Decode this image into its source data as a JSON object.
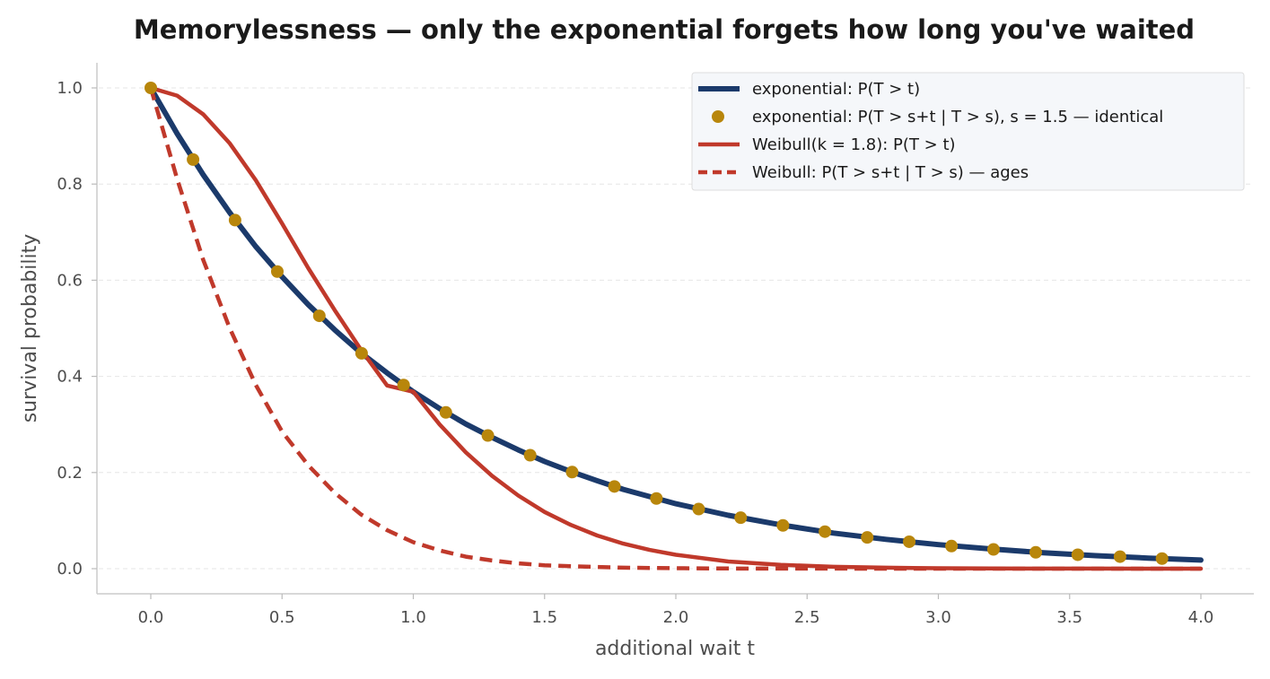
{
  "chart_data": {
    "type": "line",
    "title": "Memorylessness — only the exponential forgets how long you've waited",
    "xlabel": "additional wait t",
    "ylabel": "survival probability",
    "xlim": [
      -0.2,
      4.2
    ],
    "ylim": [
      -0.05,
      1.05
    ],
    "x_ticks": [
      0.0,
      0.5,
      1.0,
      1.5,
      2.0,
      2.5,
      3.0,
      3.5,
      4.0
    ],
    "x_tick_labels": [
      "0.0",
      "0.5",
      "1.0",
      "1.5",
      "2.0",
      "2.5",
      "3.0",
      "3.5",
      "4.0"
    ],
    "y_ticks": [
      0.0,
      0.2,
      0.4,
      0.6,
      0.8,
      1.0
    ],
    "y_tick_labels": [
      "0.0",
      "0.2",
      "0.4",
      "0.6",
      "0.8",
      "1.0"
    ],
    "grid": "horizontal dashed",
    "legend_position": "top-right",
    "series": [
      {
        "name": "exponential: P(T > t)",
        "style": "solid",
        "color": "#1b3a6b",
        "x": [
          0.0,
          0.1,
          0.2,
          0.3,
          0.4,
          0.5,
          0.6,
          0.7,
          0.8,
          0.9,
          1.0,
          1.1,
          1.2,
          1.3,
          1.4,
          1.5,
          1.6,
          1.7,
          1.8,
          1.9,
          2.0,
          2.2,
          2.4,
          2.6,
          2.8,
          3.0,
          3.2,
          3.4,
          3.6,
          3.8,
          4.0
        ],
        "y": [
          1.0,
          0.905,
          0.819,
          0.741,
          0.67,
          0.607,
          0.549,
          0.497,
          0.449,
          0.407,
          0.368,
          0.333,
          0.301,
          0.273,
          0.247,
          0.223,
          0.202,
          0.183,
          0.165,
          0.15,
          0.135,
          0.111,
          0.091,
          0.074,
          0.061,
          0.05,
          0.041,
          0.033,
          0.027,
          0.022,
          0.018
        ]
      },
      {
        "name": "exponential: P(T > s+t | T > s), s = 1.5 — identical",
        "style": "markers",
        "color": "#b8860b",
        "x": [
          0.0,
          0.161,
          0.321,
          0.482,
          0.642,
          0.803,
          0.963,
          1.124,
          1.284,
          1.445,
          1.605,
          1.766,
          1.926,
          2.087,
          2.247,
          2.408,
          2.568,
          2.729,
          2.889,
          3.05,
          3.21,
          3.371,
          3.531,
          3.692,
          3.852
        ],
        "y": [
          1.0,
          0.851,
          0.725,
          0.618,
          0.526,
          0.448,
          0.382,
          0.325,
          0.277,
          0.236,
          0.201,
          0.171,
          0.146,
          0.124,
          0.106,
          0.09,
          0.077,
          0.065,
          0.056,
          0.047,
          0.04,
          0.034,
          0.029,
          0.025,
          0.021
        ]
      },
      {
        "name": "Weibull(k = 1.8): P(T > t)",
        "style": "solid",
        "color": "#c0392b",
        "x": [
          0.0,
          0.1,
          0.2,
          0.3,
          0.4,
          0.5,
          0.6,
          0.7,
          0.8,
          0.9,
          1.0,
          1.1,
          1.2,
          1.3,
          1.4,
          1.5,
          1.6,
          1.7,
          1.8,
          1.9,
          2.0,
          2.2,
          2.4,
          2.6,
          2.8,
          3.0,
          3.2,
          3.4,
          3.6,
          3.8,
          4.0
        ],
        "y": [
          1.0,
          0.984,
          0.945,
          0.885,
          0.808,
          0.718,
          0.625,
          0.538,
          0.456,
          0.381,
          0.368,
          0.3,
          0.242,
          0.193,
          0.152,
          0.118,
          0.091,
          0.069,
          0.052,
          0.039,
          0.029,
          0.015,
          0.008,
          0.004,
          0.002,
          0.001,
          0.0005,
          0.0002,
          0.0001,
          0.0,
          0.0
        ]
      },
      {
        "name": "Weibull: P(T > s+t | T > s) — ages",
        "style": "dashed",
        "color": "#c0392b",
        "x": [
          0.0,
          0.1,
          0.2,
          0.3,
          0.4,
          0.5,
          0.6,
          0.7,
          0.8,
          0.9,
          1.0,
          1.1,
          1.2,
          1.3,
          1.4,
          1.5,
          1.6,
          1.8,
          2.0,
          2.2,
          2.4,
          2.6,
          2.8,
          3.0,
          3.2,
          3.4,
          3.6,
          3.8,
          4.0
        ],
        "y": [
          1.0,
          0.811,
          0.642,
          0.501,
          0.382,
          0.285,
          0.215,
          0.158,
          0.113,
          0.08,
          0.055,
          0.038,
          0.025,
          0.017,
          0.011,
          0.007,
          0.005,
          0.002,
          0.001,
          0.0004,
          0.0002,
          0.0001,
          0.0,
          0.0,
          0.0,
          0.0,
          0.0,
          0.0,
          0.0
        ]
      }
    ]
  }
}
